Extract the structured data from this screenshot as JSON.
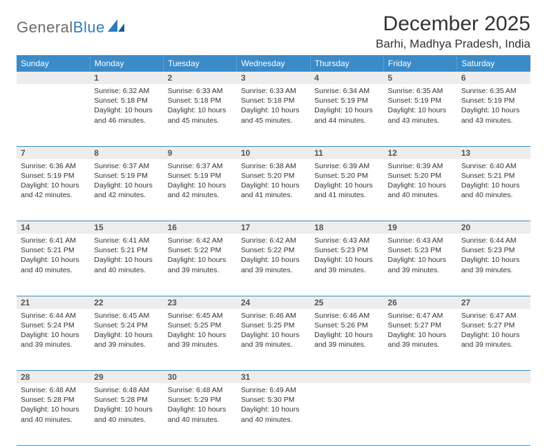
{
  "brand": {
    "general": "General",
    "blue": "Blue"
  },
  "title": {
    "month": "December 2025",
    "location": "Barhi, Madhya Pradesh, India"
  },
  "style": {
    "header_bg": "#3b8bc9",
    "header_fg": "#ffffff",
    "daynum_bg": "#ededed",
    "rule_color": "#3b8bc9",
    "logo_gray": "#6b6b6b",
    "logo_blue": "#2f7bbf",
    "page_bg": "#ffffff",
    "month_title_fontsize": 30,
    "location_fontsize": 17,
    "th_fontsize": 12,
    "cell_fontsize": 10.5
  },
  "weekdays": [
    "Sunday",
    "Monday",
    "Tuesday",
    "Wednesday",
    "Thursday",
    "Friday",
    "Saturday"
  ],
  "weeks": [
    [
      null,
      {
        "n": "1",
        "sr": "6:32 AM",
        "ss": "5:18 PM",
        "dl": "10 hours and 46 minutes."
      },
      {
        "n": "2",
        "sr": "6:33 AM",
        "ss": "5:18 PM",
        "dl": "10 hours and 45 minutes."
      },
      {
        "n": "3",
        "sr": "6:33 AM",
        "ss": "5:18 PM",
        "dl": "10 hours and 45 minutes."
      },
      {
        "n": "4",
        "sr": "6:34 AM",
        "ss": "5:19 PM",
        "dl": "10 hours and 44 minutes."
      },
      {
        "n": "5",
        "sr": "6:35 AM",
        "ss": "5:19 PM",
        "dl": "10 hours and 43 minutes."
      },
      {
        "n": "6",
        "sr": "6:35 AM",
        "ss": "5:19 PM",
        "dl": "10 hours and 43 minutes."
      }
    ],
    [
      {
        "n": "7",
        "sr": "6:36 AM",
        "ss": "5:19 PM",
        "dl": "10 hours and 42 minutes."
      },
      {
        "n": "8",
        "sr": "6:37 AM",
        "ss": "5:19 PM",
        "dl": "10 hours and 42 minutes."
      },
      {
        "n": "9",
        "sr": "6:37 AM",
        "ss": "5:19 PM",
        "dl": "10 hours and 42 minutes."
      },
      {
        "n": "10",
        "sr": "6:38 AM",
        "ss": "5:20 PM",
        "dl": "10 hours and 41 minutes."
      },
      {
        "n": "11",
        "sr": "6:39 AM",
        "ss": "5:20 PM",
        "dl": "10 hours and 41 minutes."
      },
      {
        "n": "12",
        "sr": "6:39 AM",
        "ss": "5:20 PM",
        "dl": "10 hours and 40 minutes."
      },
      {
        "n": "13",
        "sr": "6:40 AM",
        "ss": "5:21 PM",
        "dl": "10 hours and 40 minutes."
      }
    ],
    [
      {
        "n": "14",
        "sr": "6:41 AM",
        "ss": "5:21 PM",
        "dl": "10 hours and 40 minutes."
      },
      {
        "n": "15",
        "sr": "6:41 AM",
        "ss": "5:21 PM",
        "dl": "10 hours and 40 minutes."
      },
      {
        "n": "16",
        "sr": "6:42 AM",
        "ss": "5:22 PM",
        "dl": "10 hours and 39 minutes."
      },
      {
        "n": "17",
        "sr": "6:42 AM",
        "ss": "5:22 PM",
        "dl": "10 hours and 39 minutes."
      },
      {
        "n": "18",
        "sr": "6:43 AM",
        "ss": "5:23 PM",
        "dl": "10 hours and 39 minutes."
      },
      {
        "n": "19",
        "sr": "6:43 AM",
        "ss": "5:23 PM",
        "dl": "10 hours and 39 minutes."
      },
      {
        "n": "20",
        "sr": "6:44 AM",
        "ss": "5:23 PM",
        "dl": "10 hours and 39 minutes."
      }
    ],
    [
      {
        "n": "21",
        "sr": "6:44 AM",
        "ss": "5:24 PM",
        "dl": "10 hours and 39 minutes."
      },
      {
        "n": "22",
        "sr": "6:45 AM",
        "ss": "5:24 PM",
        "dl": "10 hours and 39 minutes."
      },
      {
        "n": "23",
        "sr": "6:45 AM",
        "ss": "5:25 PM",
        "dl": "10 hours and 39 minutes."
      },
      {
        "n": "24",
        "sr": "6:46 AM",
        "ss": "5:25 PM",
        "dl": "10 hours and 39 minutes."
      },
      {
        "n": "25",
        "sr": "6:46 AM",
        "ss": "5:26 PM",
        "dl": "10 hours and 39 minutes."
      },
      {
        "n": "26",
        "sr": "6:47 AM",
        "ss": "5:27 PM",
        "dl": "10 hours and 39 minutes."
      },
      {
        "n": "27",
        "sr": "6:47 AM",
        "ss": "5:27 PM",
        "dl": "10 hours and 39 minutes."
      }
    ],
    [
      {
        "n": "28",
        "sr": "6:48 AM",
        "ss": "5:28 PM",
        "dl": "10 hours and 40 minutes."
      },
      {
        "n": "29",
        "sr": "6:48 AM",
        "ss": "5:28 PM",
        "dl": "10 hours and 40 minutes."
      },
      {
        "n": "30",
        "sr": "6:48 AM",
        "ss": "5:29 PM",
        "dl": "10 hours and 40 minutes."
      },
      {
        "n": "31",
        "sr": "6:49 AM",
        "ss": "5:30 PM",
        "dl": "10 hours and 40 minutes."
      },
      null,
      null,
      null
    ]
  ],
  "labels": {
    "sunrise": "Sunrise: ",
    "sunset": "Sunset: ",
    "daylight": "Daylight: "
  }
}
